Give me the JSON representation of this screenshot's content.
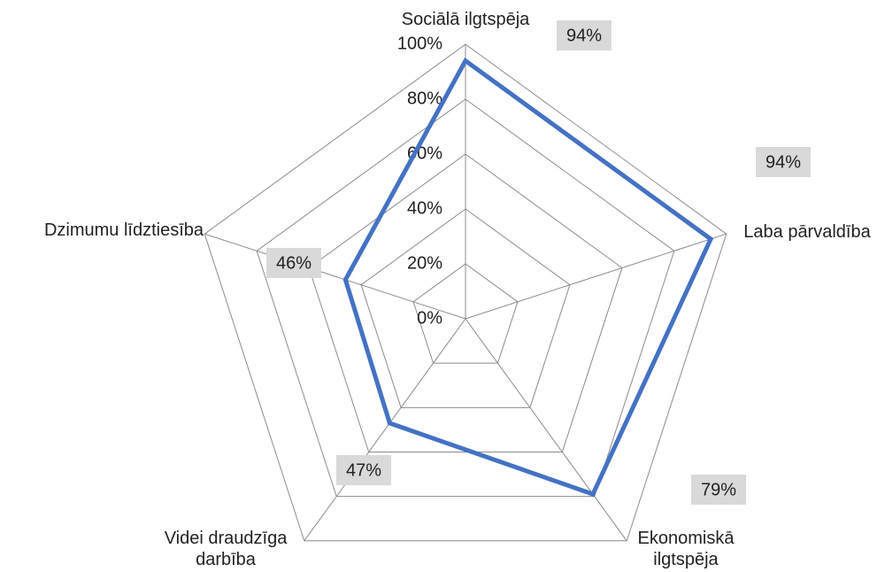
{
  "chart_data": {
    "type": "radar",
    "categories": [
      "Sociālā ilgtspēja",
      "Laba pārvaldība",
      "Ekonomiskā ilgtspēja",
      "Videi draudzīga darbība",
      "Dzimumu līdztiesība"
    ],
    "series": [
      {
        "color": "#4472c4",
        "values": [
          94,
          94,
          79,
          47,
          46
        ],
        "value_labels": [
          "94%",
          "94%",
          "79%",
          "47%",
          "46%"
        ]
      }
    ],
    "ylim": [
      0,
      100
    ],
    "yticks": [
      {
        "value": 0,
        "label": "0%"
      },
      {
        "value": 20,
        "label": "20%"
      },
      {
        "value": 40,
        "label": "40%"
      },
      {
        "value": 60,
        "label": "60%"
      },
      {
        "value": 80,
        "label": "80%"
      },
      {
        "value": 100,
        "label": "100%"
      }
    ],
    "grid": true
  }
}
